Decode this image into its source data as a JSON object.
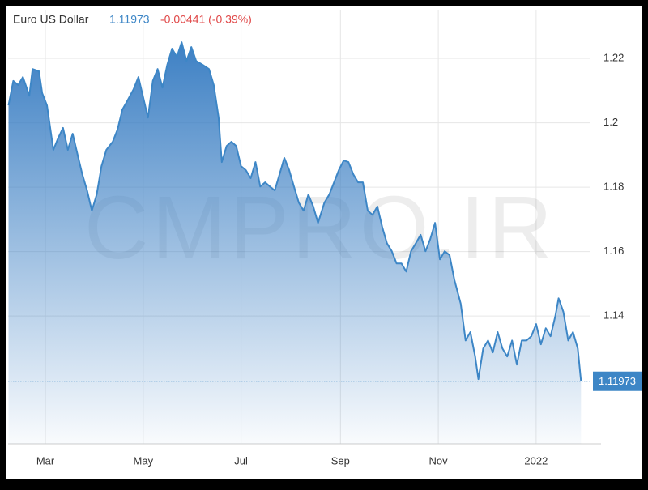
{
  "chart_data": {
    "type": "area",
    "title": "Euro US Dollar",
    "change": "-0.00441 (-0.39%)",
    "watermark": "CMPRO.IR",
    "color": "#3d86c6",
    "x": [
      5,
      8,
      11,
      14,
      18,
      20,
      24,
      26,
      29,
      33,
      36,
      39,
      42,
      45,
      48,
      51,
      54,
      57,
      60,
      63,
      66,
      70,
      73,
      76,
      79,
      83,
      86,
      89,
      92,
      95,
      98,
      101,
      104,
      107,
      110,
      113,
      116,
      119,
      122,
      126,
      130,
      133,
      136,
      138,
      141,
      144,
      147,
      150,
      153,
      156,
      159,
      162,
      165,
      168,
      171,
      174,
      177,
      180,
      183,
      186,
      189,
      192,
      195,
      198,
      202,
      205,
      208,
      211,
      214,
      217,
      220,
      223,
      226,
      229,
      232,
      235,
      238,
      241,
      244,
      247,
      250,
      253,
      256,
      259,
      262,
      265,
      268,
      271,
      274,
      277,
      280,
      283,
      287,
      290,
      293,
      296,
      298,
      301,
      304,
      307,
      310,
      313,
      316,
      319,
      322,
      325,
      328,
      331,
      334,
      337,
      340,
      343,
      346,
      348,
      351,
      354,
      357,
      360,
      362
    ],
    "values": [
      1.2054,
      1.213,
      1.2117,
      1.2142,
      1.2084,
      1.2167,
      1.216,
      1.2092,
      1.2054,
      1.1916,
      1.1953,
      1.1984,
      1.1916,
      1.1966,
      1.1903,
      1.184,
      1.179,
      1.1727,
      1.1777,
      1.1865,
      1.1916,
      1.1941,
      1.1979,
      1.2041,
      1.2067,
      1.2104,
      1.2142,
      1.2079,
      1.2016,
      1.213,
      1.2167,
      1.2109,
      1.218,
      1.223,
      1.2205,
      1.225,
      1.2192,
      1.2235,
      1.2192,
      1.218,
      1.2167,
      1.2117,
      1.2016,
      1.1878,
      1.1928,
      1.1941,
      1.1928,
      1.1865,
      1.1853,
      1.1828,
      1.1878,
      1.1802,
      1.1815,
      1.1802,
      1.179,
      1.184,
      1.1891,
      1.1853,
      1.1802,
      1.1752,
      1.1727,
      1.1777,
      1.174,
      1.1689,
      1.1752,
      1.1777,
      1.1815,
      1.1853,
      1.1883,
      1.1878,
      1.184,
      1.1815,
      1.1815,
      1.1727,
      1.1714,
      1.174,
      1.1677,
      1.1626,
      1.1601,
      1.1563,
      1.1563,
      1.1538,
      1.1601,
      1.1626,
      1.1652,
      1.1601,
      1.1639,
      1.1689,
      1.1576,
      1.1601,
      1.1589,
      1.1513,
      1.1438,
      1.1324,
      1.135,
      1.1274,
      1.1204,
      1.1299,
      1.1324,
      1.1287,
      1.135,
      1.1299,
      1.1274,
      1.1324,
      1.1249,
      1.1324,
      1.1324,
      1.1337,
      1.1375,
      1.1312,
      1.1362,
      1.1337,
      1.14,
      1.1455,
      1.1413,
      1.1324,
      1.135,
      1.1299,
      1.11973
    ],
    "xlim": [
      4.75,
      367.4
    ],
    "xticks": [
      {
        "value": 28,
        "label": "Mar"
      },
      {
        "value": 89,
        "label": "May"
      },
      {
        "value": 150,
        "label": "Jul"
      },
      {
        "value": 212,
        "label": "Sep"
      },
      {
        "value": 273,
        "label": "Nov"
      },
      {
        "value": 334,
        "label": "2022"
      }
    ],
    "ylim": [
      1.1003,
      1.2351
    ],
    "yticks": [
      1.14,
      1.16,
      1.18,
      1.2,
      1.22
    ],
    "grid": true
  }
}
